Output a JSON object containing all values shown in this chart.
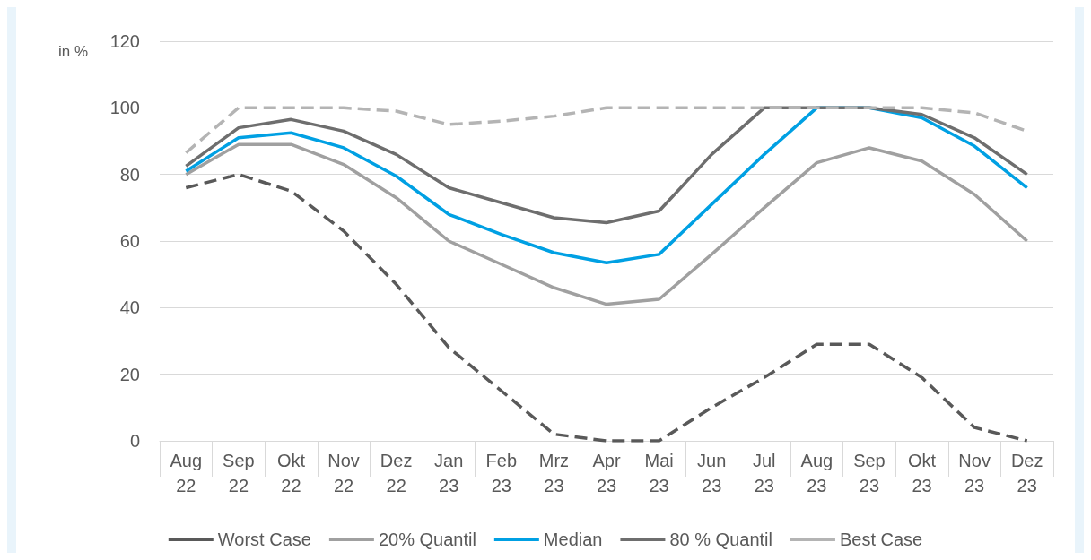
{
  "chart_data": {
    "type": "line",
    "ylabel": "in %",
    "categories": [
      "Aug\n22",
      "Sep\n22",
      "Okt\n22",
      "Nov\n22",
      "Dez\n22",
      "Jan\n23",
      "Feb\n23",
      "Mrz\n23",
      "Apr\n23",
      "Mai\n23",
      "Jun\n23",
      "Jul\n23",
      "Aug\n23",
      "Sep\n23",
      "Okt\n23",
      "Nov\n23",
      "Dez\n23"
    ],
    "series": [
      {
        "name": "Worst Case",
        "color": "#595959",
        "line_style": "dashed",
        "values": [
          76,
          80,
          75,
          63,
          47,
          28,
          15,
          2,
          0,
          0,
          10,
          19,
          29,
          29,
          19,
          4,
          0
        ]
      },
      {
        "name": "20% Quantil",
        "color": "#a0a0a0",
        "line_style": "solid",
        "values": [
          80,
          89,
          89,
          83,
          73,
          60,
          53,
          46,
          41,
          42.5,
          56,
          70,
          83.5,
          88,
          84,
          74,
          60
        ]
      },
      {
        "name": "Median",
        "color": "#00a0e3",
        "line_style": "solid",
        "values": [
          81,
          91,
          92.5,
          88,
          79.5,
          68,
          62,
          56.5,
          53.5,
          56,
          71,
          86,
          100,
          100,
          97,
          88.5,
          76
        ]
      },
      {
        "name": "80 % Quantil",
        "color": "#6e6e6e",
        "line_style": "solid",
        "values": [
          82.5,
          94,
          96.5,
          93,
          86,
          76,
          71.5,
          67,
          65.5,
          69,
          86,
          100,
          100,
          100,
          98,
          91,
          80
        ]
      },
      {
        "name": "Best Case",
        "color": "#b4b4b4",
        "line_style": "dashed",
        "values": [
          86.5,
          100,
          100,
          100,
          99,
          95,
          96,
          97.5,
          100,
          100,
          100,
          100,
          100,
          100,
          100,
          98.5,
          93
        ]
      }
    ],
    "ylim": [
      0,
      120
    ],
    "yticks": [
      0,
      20,
      40,
      60,
      80,
      100,
      120
    ],
    "grid": "y",
    "legend": "bottom",
    "marker": "none"
  }
}
